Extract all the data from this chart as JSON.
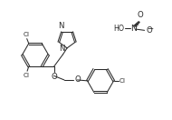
{
  "bg_color": "#ffffff",
  "line_color": "#2a2a2a",
  "line_width": 0.75,
  "font_size": 5.2,
  "xlim": [
    0,
    10.0
  ],
  "ylim": [
    0,
    7.0
  ],
  "figsize": [
    1.9,
    1.32
  ],
  "dpi": 100
}
